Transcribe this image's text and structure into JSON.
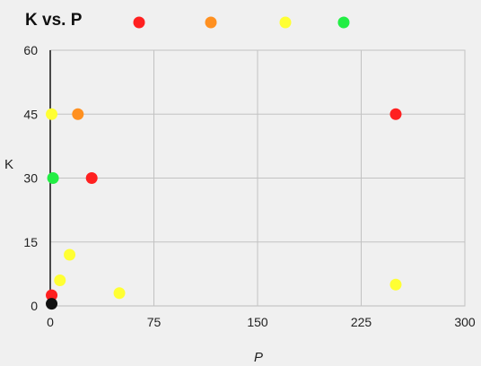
{
  "chart_data": {
    "type": "scatter",
    "title": "K vs. P",
    "xlabel": "P",
    "ylabel": "K",
    "xlim": [
      0,
      300
    ],
    "ylim": [
      0,
      60
    ],
    "xticks": [
      0,
      75,
      150,
      225,
      300
    ],
    "yticks": [
      0,
      15,
      30,
      45,
      60
    ],
    "grid": true,
    "legend": "top",
    "series": [
      {
        "color": "#ff2020",
        "points": [
          {
            "x": 250,
            "y": 45
          },
          {
            "x": 30,
            "y": 30
          },
          {
            "x": 1,
            "y": 2.5
          }
        ]
      },
      {
        "color": "#ff9020",
        "points": [
          {
            "x": 20,
            "y": 45
          }
        ]
      },
      {
        "color": "#ffff33",
        "points": [
          {
            "x": 1,
            "y": 45
          },
          {
            "x": 14,
            "y": 12
          },
          {
            "x": 7,
            "y": 6
          },
          {
            "x": 50,
            "y": 3
          },
          {
            "x": 250,
            "y": 5
          }
        ]
      },
      {
        "color": "#22ee44",
        "points": [
          {
            "x": 2,
            "y": 30
          }
        ]
      },
      {
        "color": "#111111",
        "points": [
          {
            "x": 1,
            "y": 0.5
          }
        ]
      }
    ],
    "legend_markers": [
      "#ff2020",
      "#ff9020",
      "#ffff33",
      "#22ee44"
    ]
  }
}
